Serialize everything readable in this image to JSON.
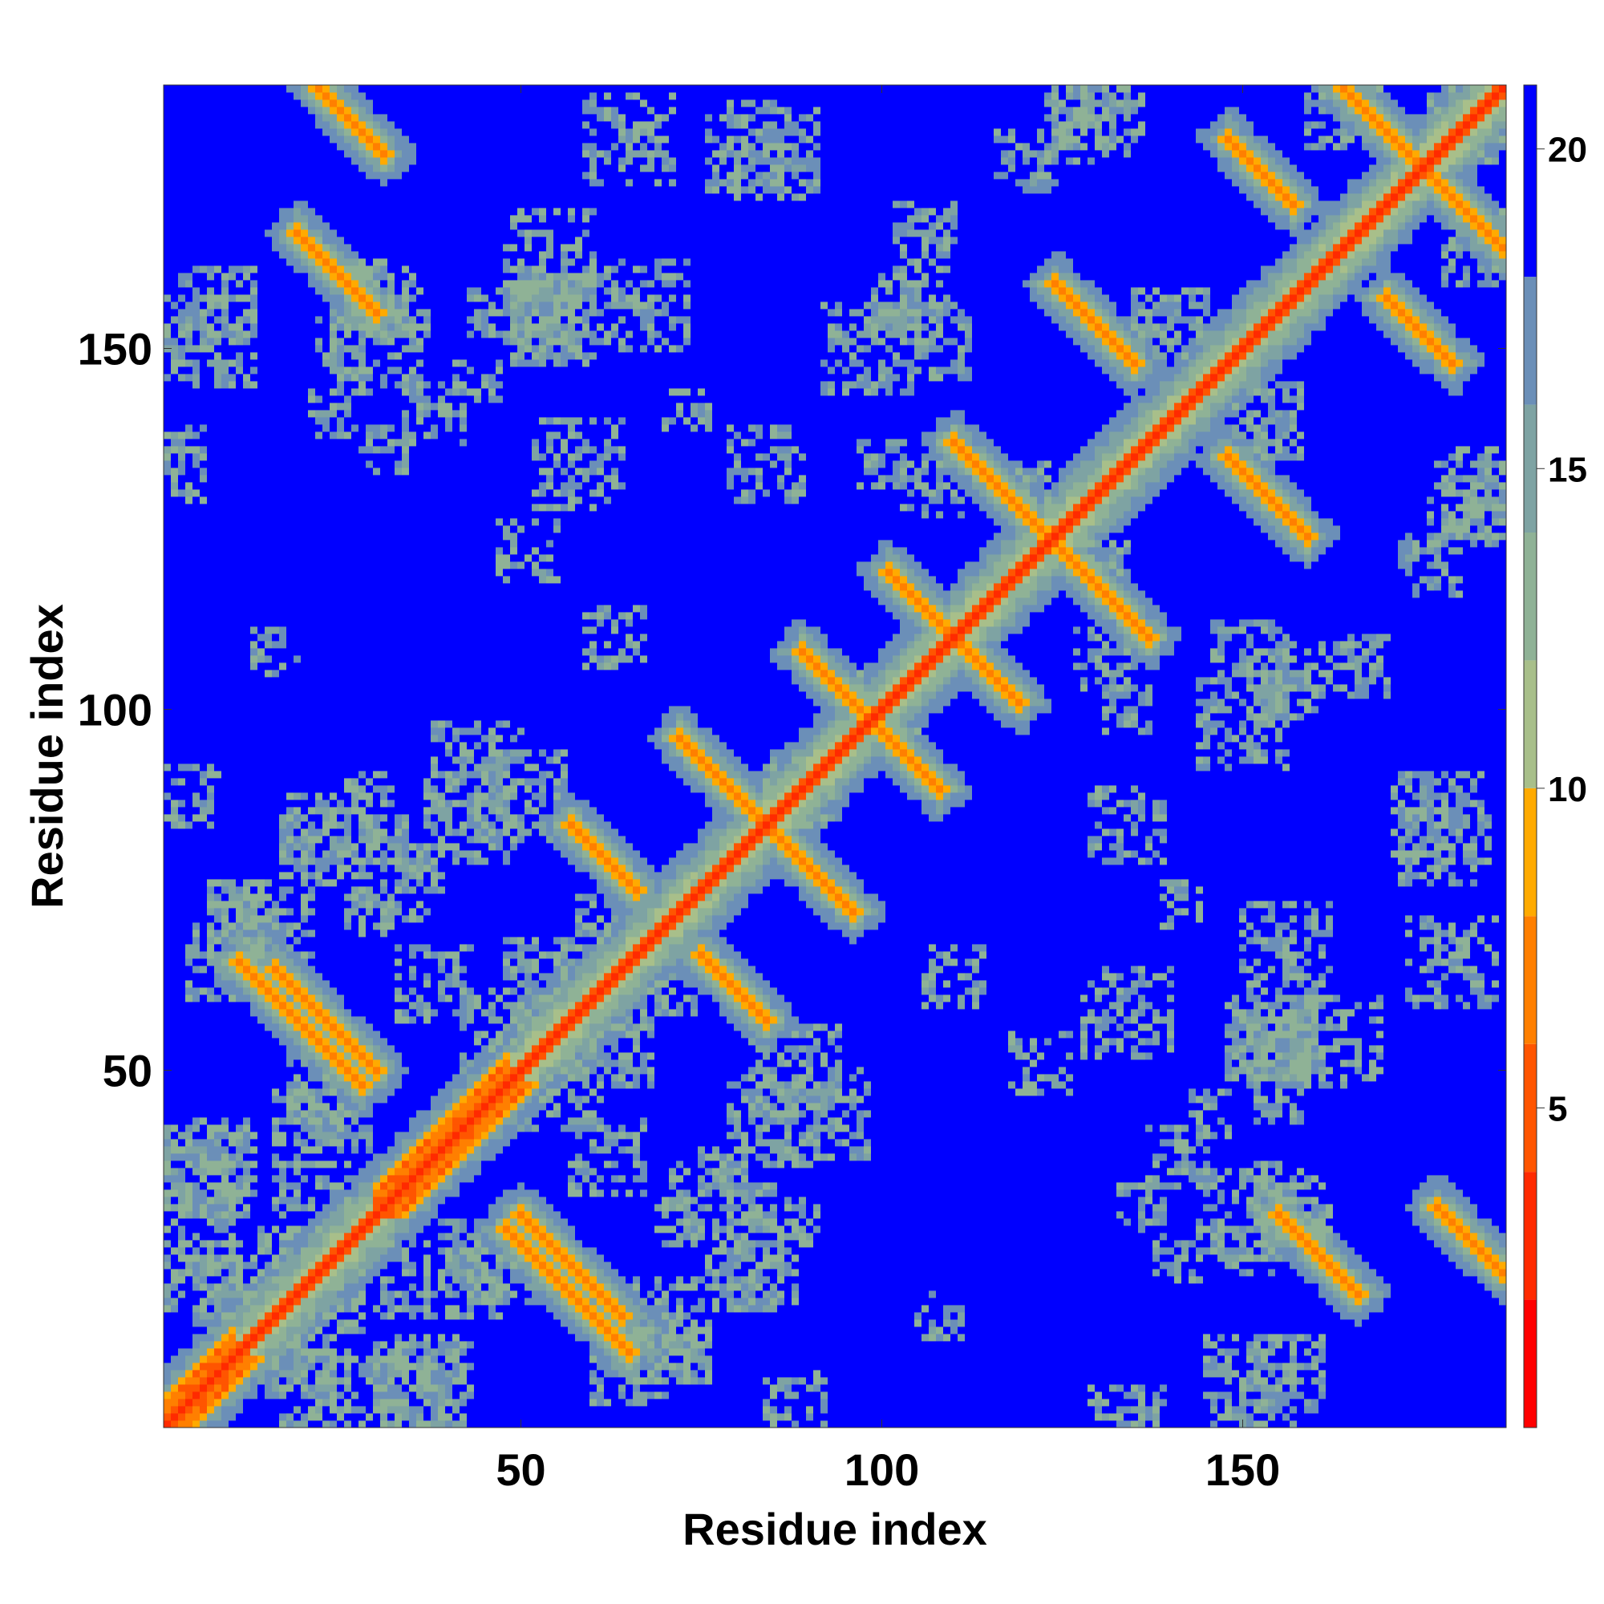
{
  "chart_data": {
    "type": "heatmap",
    "title": "",
    "xlabel": "Residue index",
    "ylabel": "Residue index",
    "n_residues": 186,
    "xlim": [
      1,
      186
    ],
    "ylim": [
      1,
      186
    ],
    "x_ticks": [
      "50",
      "100",
      "150"
    ],
    "y_ticks": [
      "50",
      "100",
      "150"
    ],
    "colorbar": {
      "range": [
        0,
        21
      ],
      "ticks": [
        "5",
        "10",
        "15",
        "20"
      ],
      "colors": [
        "#ff0000",
        "#ff2a00",
        "#ff5500",
        "#ff7f00",
        "#ffaa00",
        "#a8bf8a",
        "#8fb296",
        "#7ea3a3",
        "#6b8fb8",
        "#0000ff"
      ]
    },
    "diagonal_value": 3,
    "features": [
      {
        "kind": "helix",
        "start": 1,
        "end": 10
      },
      {
        "kind": "helix",
        "start": 30,
        "end": 48
      },
      {
        "kind": "antiparallel",
        "i_start": 11,
        "j_start": 65,
        "length": 18
      },
      {
        "kind": "antiparallel",
        "i_start": 50,
        "j_start": 30,
        "length": 15
      },
      {
        "kind": "antiparallel",
        "i_start": 57,
        "j_start": 84,
        "length": 10
      },
      {
        "kind": "antiparallel",
        "i_start": 72,
        "j_start": 96,
        "length": 12
      },
      {
        "kind": "antiparallel",
        "i_start": 89,
        "j_start": 108,
        "length": 10
      },
      {
        "kind": "antiparallel",
        "i_start": 101,
        "j_start": 119,
        "length": 12
      },
      {
        "kind": "antiparallel",
        "i_start": 110,
        "j_start": 137,
        "length": 13
      },
      {
        "kind": "antiparallel",
        "i_start": 124,
        "j_start": 159,
        "length": 12
      },
      {
        "kind": "antiparallel",
        "i_start": 148,
        "j_start": 179,
        "length": 10
      },
      {
        "kind": "antiparallel",
        "i_start": 164,
        "j_start": 186,
        "length": 12
      },
      {
        "kind": "antiparallel",
        "i_start": 22,
        "j_start": 186,
        "length": 10
      },
      {
        "kind": "antiparallel",
        "i_start": 155,
        "j_start": 30,
        "length": 12
      }
    ]
  }
}
